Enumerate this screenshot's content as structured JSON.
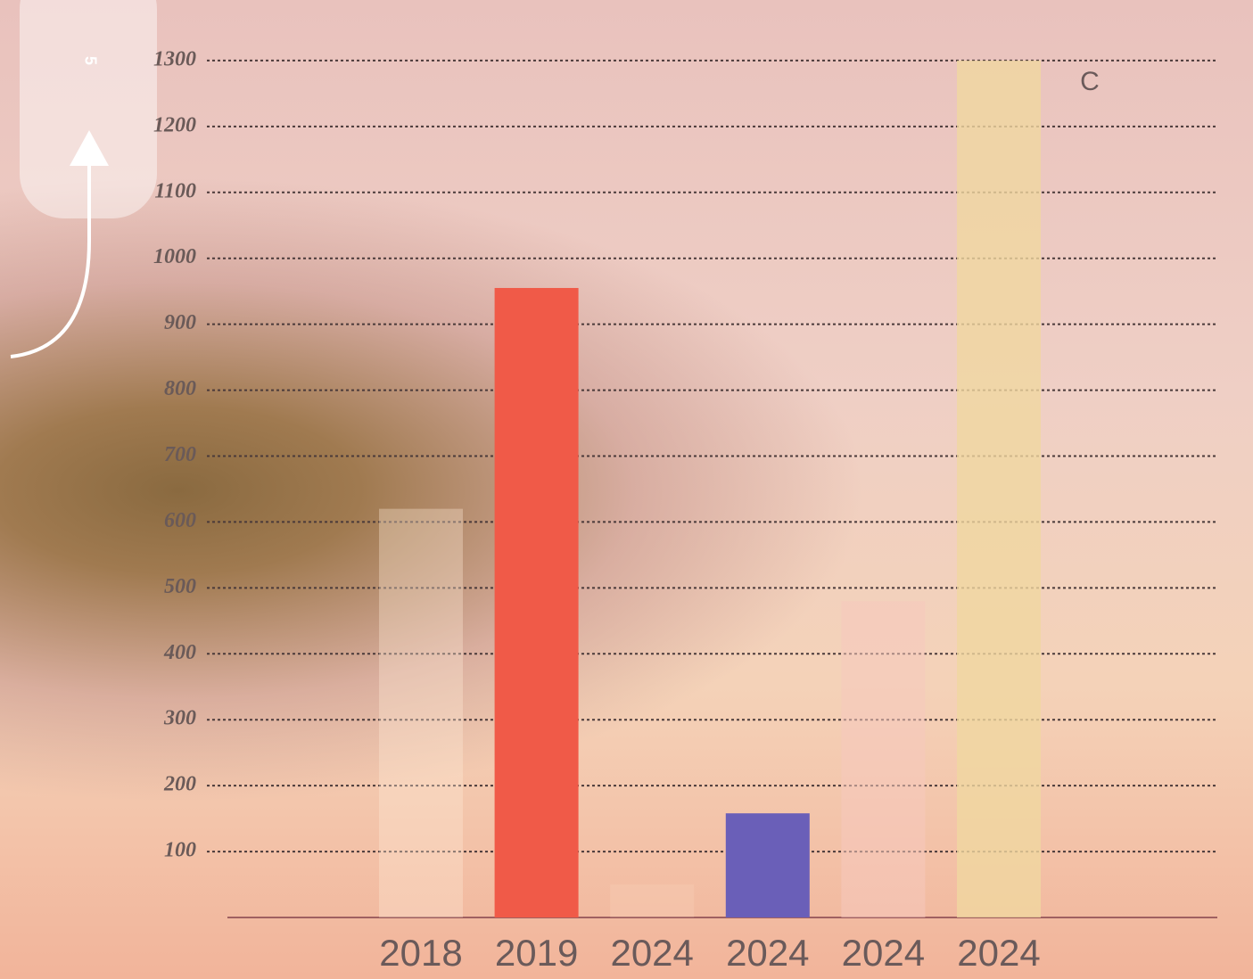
{
  "chart_data": {
    "type": "bar",
    "categories": [
      "2018",
      "2019",
      "2024",
      "2024",
      "2024",
      "2024"
    ],
    "values": [
      620,
      955,
      50,
      158,
      480,
      1300
    ],
    "colors": [
      "rgba(255,235,215,0.35)",
      "#f05a48",
      "rgba(255,235,215,0.15)",
      "#6a5fb8",
      "rgba(245,200,190,0.55)",
      "rgba(240,215,160,0.8)"
    ],
    "ylim": [
      0,
      1400
    ],
    "yticks": [
      100,
      200,
      300,
      400,
      500,
      600,
      700,
      800,
      900,
      1000,
      1100,
      1200,
      1300,
      1400
    ],
    "grid": true,
    "annotation": "C"
  },
  "sidebar": {
    "label": "5"
  }
}
